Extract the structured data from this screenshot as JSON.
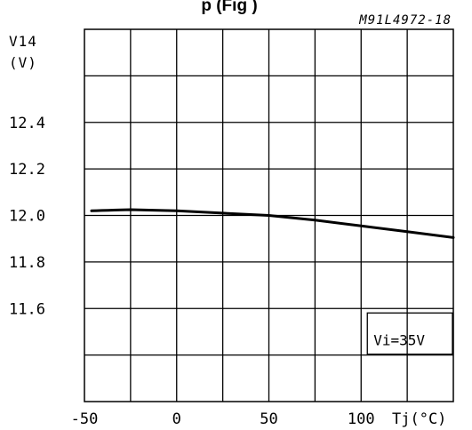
{
  "chart_data": {
    "type": "line",
    "title_fragment": "p   (Fig  )",
    "reference_code": "M91L4972-18",
    "ylabel_line1": "V14",
    "ylabel_line2": "(V)",
    "xlabel": "Tj(°C)",
    "annotation": "Vi=35V",
    "xlim": [
      -50,
      150
    ],
    "ylim": [
      11.2,
      12.8
    ],
    "x_ticks": [
      -50,
      0,
      50,
      100
    ],
    "x_tick_labels": [
      "-50",
      "0",
      "50",
      "100"
    ],
    "y_ticks": [
      12.4,
      12.2,
      12.0,
      11.8,
      11.6
    ],
    "y_tick_labels": [
      "12.4",
      "12.2",
      "12.0",
      "11.8",
      "11.6"
    ],
    "grid": true,
    "series": [
      {
        "x": [
          -50,
          -25,
          0,
          25,
          50,
          75,
          100,
          125,
          150
        ],
        "y": [
          12.02,
          12.025,
          12.02,
          12.01,
          12.0,
          11.98,
          11.955,
          11.93,
          11.905
        ]
      }
    ]
  }
}
